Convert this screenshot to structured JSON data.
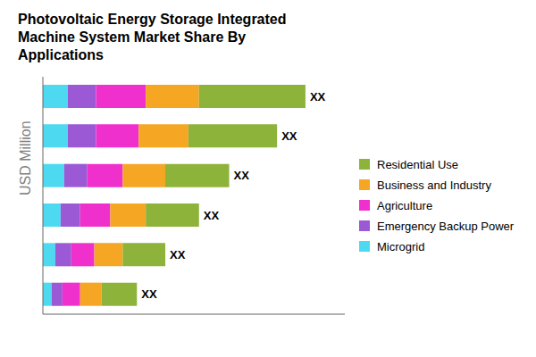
{
  "chart_data": {
    "type": "bar",
    "title": "Photovoltaic Energy Storage Integrated\nMachine System Market Share By\nApplications",
    "ylabel": "USD Million",
    "orientation": "horizontal",
    "stacked": true,
    "grid": false,
    "tick_labels": false,
    "categories": [
      null,
      null,
      null,
      null,
      null,
      null
    ],
    "series": [
      {
        "name": "Microgrid",
        "color": "#4DD9F0",
        "values": [
          0.7,
          0.7,
          0.6,
          0.5,
          0.35,
          0.25
        ]
      },
      {
        "name": "Emergency Backup Power",
        "color": "#9B59D6",
        "values": [
          0.8,
          0.8,
          0.65,
          0.55,
          0.45,
          0.3
        ]
      },
      {
        "name": "Agriculture",
        "color": "#F030CC",
        "values": [
          1.4,
          1.2,
          1.0,
          0.85,
          0.65,
          0.5
        ]
      },
      {
        "name": "Business and Industry",
        "color": "#F5A623",
        "values": [
          1.5,
          1.4,
          1.2,
          1.0,
          0.8,
          0.6
        ]
      },
      {
        "name": "Residential Use",
        "color": "#8DB33A",
        "values": [
          3.0,
          2.5,
          1.8,
          1.5,
          1.2,
          1.0
        ]
      }
    ],
    "annotations": [
      "XX",
      "XX",
      "XX",
      "XX",
      "XX",
      "XX"
    ],
    "xlim": [
      0,
      8.51
    ],
    "xticks": []
  }
}
